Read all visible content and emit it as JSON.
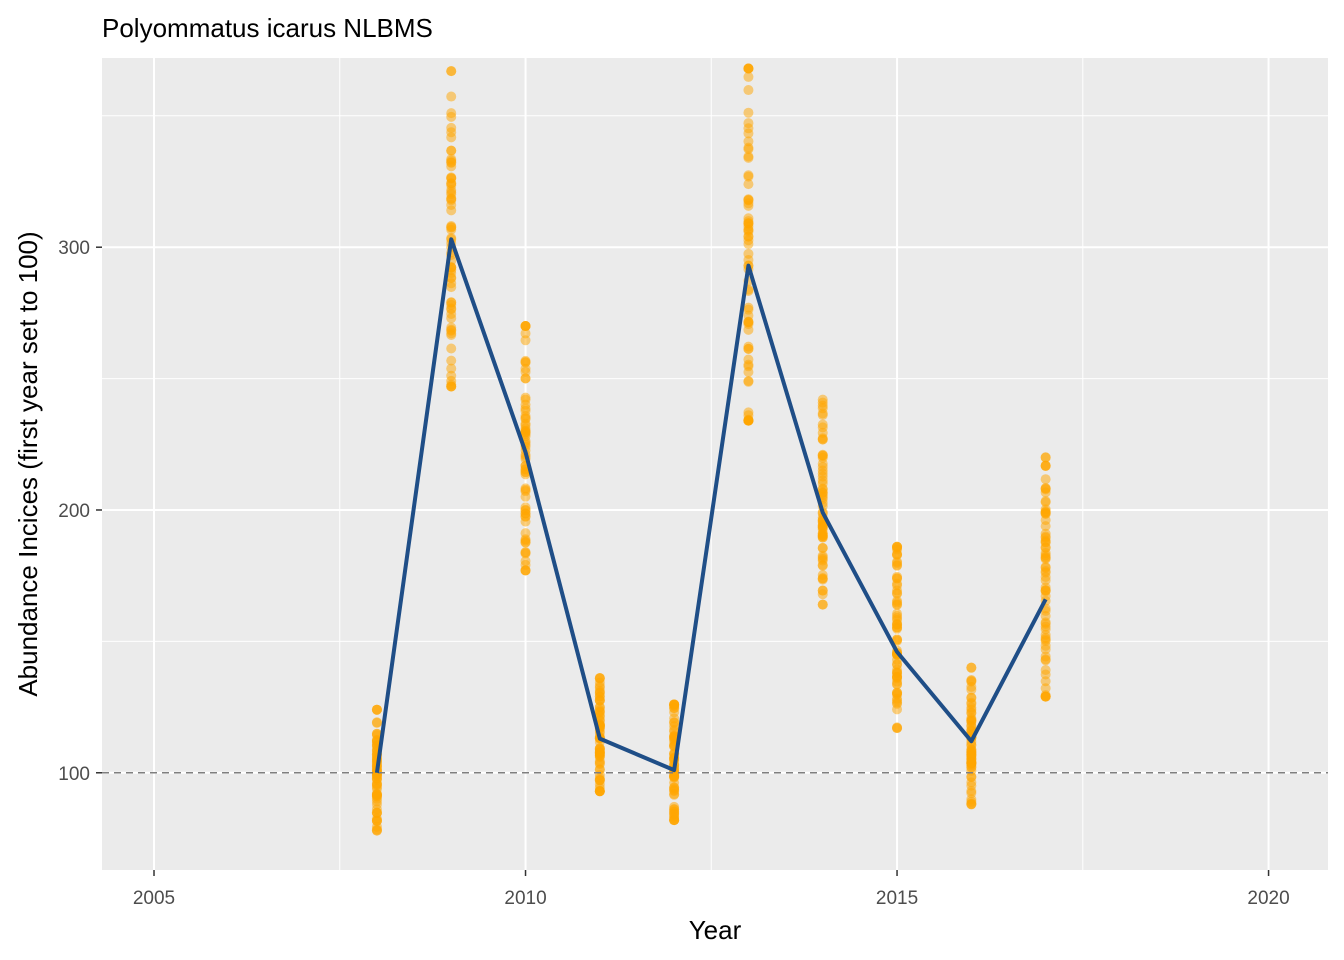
{
  "chart_data": {
    "type": "line",
    "title": "Polyommatus icarus NLBMS",
    "xlabel": "Year",
    "ylabel": "Abundance Incices (first year set to 100)",
    "xlim": [
      2004.3,
      2020.8
    ],
    "ylim": [
      63,
      372
    ],
    "x_ticks": [
      2005,
      2010,
      2015,
      2020
    ],
    "y_ticks": [
      100,
      200,
      300
    ],
    "x_minor": [
      2007.5,
      2012.5,
      2017.5
    ],
    "y_minor": [
      150,
      250,
      350
    ],
    "x_tick_labels": [
      "2005",
      "2010",
      "2015",
      "2020"
    ],
    "y_tick_labels": [
      "100",
      "200",
      "300"
    ],
    "grid": true,
    "reference_line": {
      "y": 100,
      "style": "dashed"
    },
    "series": [
      {
        "type": "line",
        "x": [
          2008,
          2009,
          2010,
          2011,
          2012,
          2013,
          2014,
          2015,
          2016,
          2017
        ],
        "y": [
          100,
          303,
          222,
          113,
          101,
          293,
          199,
          146,
          112,
          166
        ]
      }
    ],
    "bootstrap_ranges": [
      {
        "x": 2008,
        "min": 78,
        "max": 124
      },
      {
        "x": 2009,
        "min": 247,
        "max": 367
      },
      {
        "x": 2010,
        "min": 177,
        "max": 270
      },
      {
        "x": 2011,
        "min": 93,
        "max": 136
      },
      {
        "x": 2012,
        "min": 82,
        "max": 126
      },
      {
        "x": 2013,
        "min": 234,
        "max": 368
      },
      {
        "x": 2014,
        "min": 164,
        "max": 242
      },
      {
        "x": 2015,
        "min": 117,
        "max": 186
      },
      {
        "x": 2016,
        "min": 88,
        "max": 140
      },
      {
        "x": 2017,
        "min": 129,
        "max": 220
      }
    ],
    "colors": {
      "panel": "#ebebeb",
      "grid_major": "#ffffff",
      "points": "#ffa500",
      "line": "#1f4e87",
      "reference_line": "#7f7f7f"
    }
  }
}
